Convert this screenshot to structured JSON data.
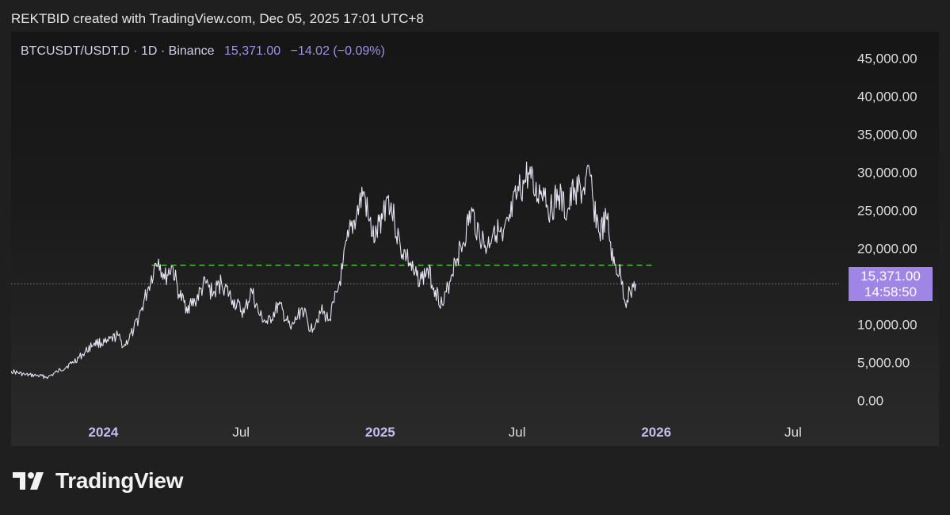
{
  "header": {
    "attribution": "REKTBID created with TradingView.com, Dec 05, 2025 17:01 UTC+8"
  },
  "legend": {
    "symbol": "BTCUSDT/USDT.D · 1D · Binance",
    "last": "15,371.00",
    "change": "−14.02 (−0.09%)"
  },
  "price_label": {
    "price": "15,371.00",
    "countdown": "14:58:50"
  },
  "footer": {
    "brand": "TradingView",
    "logo_icon": "tradingview-logo-icon"
  },
  "colors": {
    "line": "#e6e3f2",
    "support_line": "#4cd137",
    "accent": "#9f86e6",
    "year_label": "#c6bdf0"
  },
  "chart_data": {
    "type": "line",
    "title": "BTCUSDT/USDT.D",
    "timeframe": "1D",
    "exchange": "Binance",
    "xlabel": "",
    "ylabel": "",
    "x_range": [
      "2023-09-01",
      "2026-08-15"
    ],
    "ylim": [
      -1800,
      48500
    ],
    "y_ticks": [
      {
        "value": 0,
        "label": "0.00"
      },
      {
        "value": 5000,
        "label": "5,000.00"
      },
      {
        "value": 10000,
        "label": "10,000.00"
      },
      {
        "value": 20000,
        "label": "20,000.00"
      },
      {
        "value": 25000,
        "label": "25,000.00"
      },
      {
        "value": 30000,
        "label": "30,000.00"
      },
      {
        "value": 35000,
        "label": "35,000.00"
      },
      {
        "value": 40000,
        "label": "40,000.00"
      },
      {
        "value": 45000,
        "label": "45,000.00"
      }
    ],
    "x_ticks": [
      {
        "date": "2024-01-01",
        "label": "2024",
        "major": true
      },
      {
        "date": "2024-07-01",
        "label": "Jul",
        "major": false
      },
      {
        "date": "2025-01-01",
        "label": "2025",
        "major": true
      },
      {
        "date": "2025-07-01",
        "label": "Jul",
        "major": false
      },
      {
        "date": "2026-01-01",
        "label": "2026",
        "major": true
      },
      {
        "date": "2026-07-01",
        "label": "Jul",
        "major": false
      }
    ],
    "support_level": {
      "value": 17800,
      "from": "2024-03-05",
      "to": "2025-12-31"
    },
    "last_price_line": 15371,
    "series": [
      {
        "x": [
          "2023-09-01",
          "2023-09-20",
          "2023-10-05",
          "2023-10-20",
          "2023-11-01",
          "2023-11-20",
          "2023-12-05",
          "2023-12-20",
          "2024-01-05",
          "2024-01-20",
          "2024-01-28",
          "2024-02-10",
          "2024-02-20",
          "2024-03-01",
          "2024-03-08",
          "2024-03-14",
          "2024-03-22",
          "2024-04-01",
          "2024-04-10",
          "2024-04-20",
          "2024-05-01",
          "2024-05-15",
          "2024-05-25",
          "2024-06-05",
          "2024-06-20",
          "2024-07-05",
          "2024-07-15",
          "2024-07-25",
          "2024-08-05",
          "2024-08-20",
          "2024-09-05",
          "2024-09-20",
          "2024-10-01",
          "2024-10-15",
          "2024-10-25",
          "2024-11-01",
          "2024-11-06",
          "2024-11-12",
          "2024-11-20",
          "2024-12-01",
          "2024-12-10",
          "2024-12-17",
          "2024-12-25",
          "2025-01-05",
          "2025-01-12",
          "2025-01-20",
          "2025-01-28",
          "2025-02-05",
          "2025-02-15",
          "2025-02-25",
          "2025-03-05",
          "2025-03-15",
          "2025-03-25",
          "2025-04-05",
          "2025-04-10",
          "2025-04-20",
          "2025-05-01",
          "2025-05-12",
          "2025-05-22",
          "2025-06-01",
          "2025-06-12",
          "2025-06-22",
          "2025-07-01",
          "2025-07-10",
          "2025-07-16",
          "2025-07-25",
          "2025-08-05",
          "2025-08-14",
          "2025-08-25",
          "2025-09-05",
          "2025-09-15",
          "2025-09-25",
          "2025-10-06",
          "2025-10-10",
          "2025-10-18",
          "2025-10-28",
          "2025-11-05",
          "2025-11-15",
          "2025-11-21",
          "2025-11-27",
          "2025-12-05"
        ],
        "values": [
          3900,
          3400,
          3300,
          3100,
          3800,
          4900,
          6100,
          7600,
          7600,
          8600,
          7100,
          9200,
          11900,
          15000,
          17400,
          18600,
          16000,
          17700,
          14000,
          12300,
          13000,
          15500,
          14000,
          15600,
          13200,
          11500,
          14500,
          11300,
          10100,
          12600,
          9400,
          12200,
          9300,
          11800,
          10600,
          12900,
          14500,
          17300,
          21500,
          24500,
          27500,
          23600,
          21000,
          25000,
          27000,
          23500,
          20000,
          19000,
          16500,
          16000,
          17200,
          14500,
          12500,
          16500,
          18500,
          20500,
          24800,
          22000,
          20000,
          23000,
          21000,
          24000,
          27000,
          28500,
          30000,
          27000,
          28000,
          25000,
          27000,
          24500,
          28000,
          27500,
          29500,
          26000,
          22000,
          23800,
          18000,
          16500,
          12800,
          14500,
          15371
        ]
      }
    ]
  }
}
